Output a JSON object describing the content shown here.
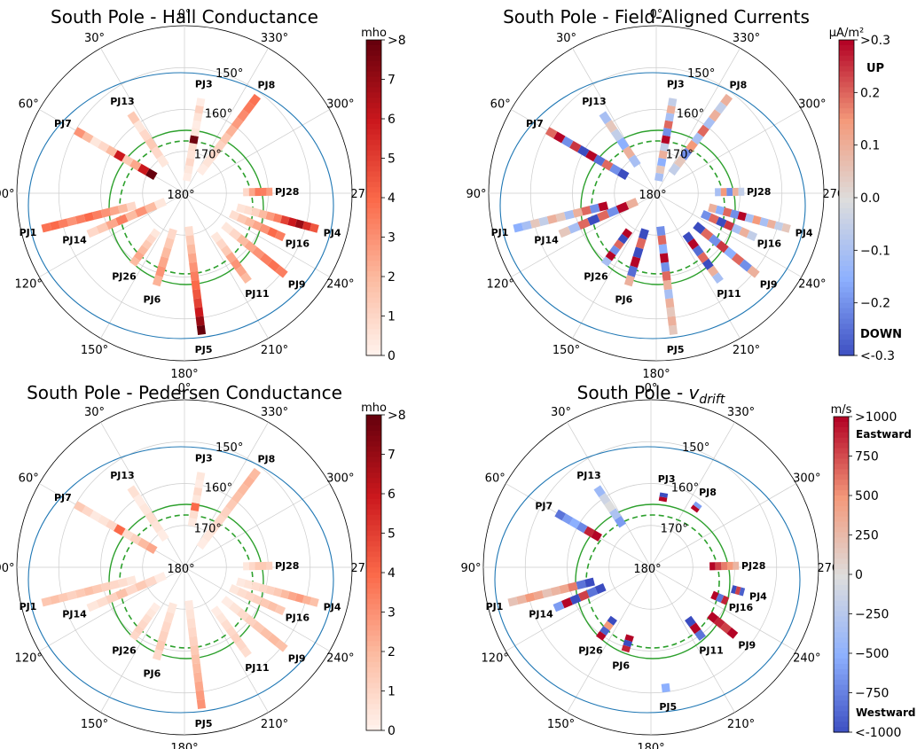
{
  "chart_data": [
    {
      "type": "polar",
      "title": "South Pole  -  Hall Conductance",
      "angle_ticks": [
        "0°",
        "30°",
        "60°",
        "90°",
        "120°",
        "150°",
        "180°",
        "210°",
        "240°",
        "270°",
        "300°",
        "330°"
      ],
      "radial_ticks": [
        "150°",
        "160°",
        "170°",
        "180°"
      ],
      "colorbar": {
        "label": "mho",
        "cmap": "reds",
        "ticks": [
          "0",
          "1",
          "2",
          "3",
          "4",
          "5",
          "6",
          "7",
          ">8"
        ],
        "range": [
          0,
          8
        ],
        "annotations": []
      },
      "tracks": [
        {
          "name": "PJ3",
          "angle": 350,
          "r_start": 3,
          "r_end": 23,
          "values": [
            0.3,
            0.5,
            1.0,
            0.6,
            0.8,
            7.8,
            0.5,
            0.3,
            0.6,
            1.2,
            0.3
          ]
        },
        {
          "name": "PJ8",
          "angle": 323,
          "r_start": 6,
          "r_end": 29,
          "values": [
            0.3,
            0.6,
            1.0,
            1.2,
            1.6,
            2.2,
            2.8,
            3.2,
            3.6,
            3.8
          ]
        },
        {
          "name": "PJ28",
          "angle": 271,
          "r_start": 14,
          "r_end": 21,
          "values": [
            1.0,
            2.5,
            3.6,
            3.5,
            2.8
          ]
        },
        {
          "name": "PJ4",
          "angle": 255,
          "r_start": 13,
          "r_end": 33,
          "values": [
            0.6,
            0.8,
            1.2,
            2.0,
            2.8,
            3.5,
            5.0,
            6.0,
            7.0,
            5.5,
            4.5
          ]
        },
        {
          "name": "PJ16",
          "angle": 246,
          "r_start": 12,
          "r_end": 26,
          "values": [
            0.8,
            1.5,
            2.0,
            2.5,
            3.0,
            4.0,
            3.5
          ]
        },
        {
          "name": "PJ9",
          "angle": 231,
          "r_start": 12,
          "r_end": 31,
          "values": [
            0.5,
            1.0,
            2.0,
            2.5,
            3.0,
            3.5,
            3.8,
            3.5
          ]
        },
        {
          "name": "PJ11",
          "angle": 216,
          "r_start": 12,
          "r_end": 26,
          "values": [
            0.5,
            1.0,
            1.5,
            2.5,
            3.0,
            2.5,
            2.0
          ]
        },
        {
          "name": "PJ5",
          "angle": 187,
          "r_start": 8,
          "r_end": 34,
          "values": [
            0.8,
            1.5,
            2.0,
            2.5,
            3.0,
            3.5,
            4.0,
            4.5,
            5.0,
            6.0,
            7.0,
            8.0
          ]
        },
        {
          "name": "PJ6",
          "angle": 163,
          "r_start": 9,
          "r_end": 23,
          "values": [
            1.0,
            1.5,
            2.0,
            2.5,
            3.0,
            2.2
          ]
        },
        {
          "name": "PJ26",
          "angle": 144,
          "r_start": 11,
          "r_end": 21,
          "values": [
            0.5,
            1.0,
            1.5,
            2.0,
            2.5,
            2.0
          ]
        },
        {
          "name": "PJ14",
          "angle": 113,
          "r_start": 5,
          "r_end": 25,
          "values": [
            0.5,
            2.0,
            3.0,
            2.0,
            3.5,
            2.5,
            1.5,
            1.0
          ]
        },
        {
          "name": "PJ1",
          "angle": 104,
          "r_start": 12,
          "r_end": 35,
          "values": [
            1.0,
            2.0,
            2.5,
            3.0,
            3.5,
            4.0,
            3.5,
            3.0,
            3.5,
            4.0,
            3.8
          ]
        },
        {
          "name": "PJ7",
          "angle": 60,
          "r_start": 8,
          "r_end": 30,
          "values": [
            8.0,
            6.0,
            2.5,
            1.5,
            6.0,
            2.0,
            1.0,
            0.5,
            2.0,
            3.0
          ]
        },
        {
          "name": "PJ13",
          "angle": 34,
          "r_start": 8,
          "r_end": 23,
          "values": [
            0.5,
            1.0,
            1.5,
            1.0,
            0.5,
            1.5
          ]
        }
      ]
    },
    {
      "type": "polar",
      "title": "South Pole  -  Field-Aligned Currents",
      "angle_ticks": [
        "0°",
        "30°",
        "60°",
        "90°",
        "120°",
        "150°",
        "180°",
        "210°",
        "240°",
        "270°",
        "300°",
        "330°"
      ],
      "radial_ticks": [
        "150°",
        "160°",
        "170°",
        "180°"
      ],
      "colorbar": {
        "label": "μA/m²",
        "cmap": "coolwarm",
        "ticks": [
          "<-0.3",
          "−0.2",
          "−0.1",
          "0.0",
          "0.1",
          "0.2",
          ">0.3"
        ],
        "range": [
          -0.3,
          0.3
        ],
        "annotations": [
          "UP",
          "DOWN"
        ]
      },
      "tracks": [
        {
          "name": "PJ3",
          "angle": 350,
          "r_start": 3,
          "r_end": 23,
          "values": [
            -0.1,
            0.05,
            -0.15,
            0.1,
            -0.05,
            0.3,
            -0.2,
            0.2,
            -0.1,
            0.1,
            -0.05
          ]
        },
        {
          "name": "PJ8",
          "angle": 323,
          "r_start": 6,
          "r_end": 29,
          "values": [
            -0.05,
            0.05,
            -0.2,
            0.15,
            -0.1,
            0.2,
            -0.1,
            0.1,
            -0.05,
            0.1
          ]
        },
        {
          "name": "PJ28",
          "angle": 271,
          "r_start": 14,
          "r_end": 21,
          "values": [
            -0.1,
            0.15,
            -0.2,
            0.1,
            -0.05
          ]
        },
        {
          "name": "PJ4",
          "angle": 255,
          "r_start": 13,
          "r_end": 33,
          "values": [
            0.1,
            -0.15,
            0.2,
            -0.2,
            0.3,
            -0.1,
            0.15,
            -0.1,
            0.1,
            -0.05,
            0.05
          ]
        },
        {
          "name": "PJ16",
          "angle": 246,
          "r_start": 12,
          "r_end": 26,
          "values": [
            -0.2,
            0.2,
            -0.3,
            0.25,
            -0.1,
            0.1,
            -0.05
          ]
        },
        {
          "name": "PJ9",
          "angle": 231,
          "r_start": 12,
          "r_end": 31,
          "values": [
            -0.3,
            0.2,
            -0.2,
            0.25,
            -0.15,
            0.2,
            -0.2,
            0.1
          ]
        },
        {
          "name": "PJ11",
          "angle": 216,
          "r_start": 12,
          "r_end": 26,
          "values": [
            -0.3,
            0.3,
            -0.25,
            0.2,
            -0.3,
            0.1,
            -0.1
          ]
        },
        {
          "name": "PJ5",
          "angle": 187,
          "r_start": 8,
          "r_end": 34,
          "values": [
            -0.2,
            0.2,
            -0.15,
            0.3,
            -0.2,
            0.2,
            0.1,
            -0.1,
            0.1,
            0.05,
            0.1,
            0.05
          ]
        },
        {
          "name": "PJ6",
          "angle": 163,
          "r_start": 9,
          "r_end": 23,
          "values": [
            -0.3,
            0.2,
            -0.3,
            0.3,
            -0.25,
            0.1
          ]
        },
        {
          "name": "PJ26",
          "angle": 144,
          "r_start": 11,
          "r_end": 21,
          "values": [
            0.3,
            -0.3,
            0.2,
            -0.2,
            0.3,
            -0.1
          ]
        },
        {
          "name": "PJ14",
          "angle": 113,
          "r_start": 5,
          "r_end": 25,
          "values": [
            0.1,
            0.3,
            -0.2,
            0.2,
            -0.3,
            0.2,
            -0.1,
            0.05
          ]
        },
        {
          "name": "PJ1",
          "angle": 104,
          "r_start": 12,
          "r_end": 35,
          "values": [
            0.3,
            -0.2,
            0.2,
            0.1,
            -0.1,
            0.05,
            0.1,
            -0.05,
            0.05,
            -0.1,
            -0.15
          ]
        },
        {
          "name": "PJ7",
          "angle": 60,
          "r_start": 8,
          "r_end": 30,
          "values": [
            -0.3,
            -0.2,
            0.2,
            -0.25,
            0.3,
            -0.3,
            0.25,
            -0.2,
            0.3,
            0.2
          ]
        },
        {
          "name": "PJ13",
          "angle": 34,
          "r_start": 8,
          "r_end": 23,
          "values": [
            -0.1,
            0.1,
            -0.15,
            -0.05,
            0.05,
            -0.1
          ]
        }
      ]
    },
    {
      "type": "polar",
      "title": "South Pole  -  Pedersen Conductance",
      "angle_ticks": [
        "0°",
        "30°",
        "60°",
        "90°",
        "120°",
        "150°",
        "180°",
        "210°",
        "240°",
        "270°",
        "300°",
        "330°"
      ],
      "radial_ticks": [
        "150°",
        "160°",
        "170°",
        "180°"
      ],
      "colorbar": {
        "label": "mho",
        "cmap": "reds",
        "ticks": [
          "0",
          "1",
          "2",
          "3",
          "4",
          "5",
          "6",
          "7",
          ">8"
        ],
        "range": [
          0,
          8
        ],
        "annotations": []
      },
      "tracks": [
        {
          "name": "PJ3",
          "angle": 350,
          "r_start": 10,
          "r_end": 23,
          "values": [
            0.4,
            0.8,
            4.0,
            0.5,
            0.9,
            0.3,
            0.5
          ]
        },
        {
          "name": "PJ8",
          "angle": 323,
          "r_start": 6,
          "r_end": 29,
          "values": [
            0.3,
            0.5,
            0.8,
            1.0,
            1.2,
            1.5,
            1.8,
            2.0,
            2.2,
            2.0
          ]
        },
        {
          "name": "PJ28",
          "angle": 271,
          "r_start": 14,
          "r_end": 21,
          "values": [
            0.5,
            1.0,
            1.5,
            1.5,
            1.2
          ]
        },
        {
          "name": "PJ4",
          "angle": 255,
          "r_start": 13,
          "r_end": 33,
          "values": [
            0.4,
            0.6,
            0.8,
            1.0,
            1.2,
            1.5,
            2.0,
            2.5,
            2.8,
            2.2,
            1.8
          ]
        },
        {
          "name": "PJ16",
          "angle": 246,
          "r_start": 12,
          "r_end": 26,
          "values": [
            0.5,
            0.8,
            1.0,
            1.2,
            1.5,
            1.8,
            1.5
          ]
        },
        {
          "name": "PJ9",
          "angle": 231,
          "r_start": 12,
          "r_end": 31,
          "values": [
            0.3,
            0.6,
            0.9,
            1.2,
            1.5,
            1.8,
            2.0,
            1.8
          ]
        },
        {
          "name": "PJ11",
          "angle": 216,
          "r_start": 12,
          "r_end": 26,
          "values": [
            0.3,
            0.5,
            0.8,
            1.0,
            1.2,
            1.0,
            0.8
          ]
        },
        {
          "name": "PJ5",
          "angle": 187,
          "r_start": 8,
          "r_end": 34,
          "values": [
            0.4,
            0.6,
            0.8,
            1.0,
            1.2,
            1.5,
            1.8,
            2.0,
            2.2,
            2.5,
            2.8,
            3.0
          ]
        },
        {
          "name": "PJ6",
          "angle": 163,
          "r_start": 9,
          "r_end": 23,
          "values": [
            0.5,
            0.8,
            1.0,
            1.2,
            1.5,
            1.0
          ]
        },
        {
          "name": "PJ26",
          "angle": 144,
          "r_start": 11,
          "r_end": 21,
          "values": [
            0.3,
            0.5,
            0.8,
            1.0,
            1.2,
            1.0
          ]
        },
        {
          "name": "PJ14",
          "angle": 113,
          "r_start": 5,
          "r_end": 25,
          "values": [
            0.3,
            1.0,
            1.5,
            1.0,
            1.8,
            1.2,
            0.8,
            0.5
          ]
        },
        {
          "name": "PJ1",
          "angle": 104,
          "r_start": 12,
          "r_end": 35,
          "values": [
            0.5,
            0.8,
            1.0,
            1.2,
            1.5,
            1.8,
            1.5,
            1.2,
            1.5,
            1.8,
            1.6
          ]
        },
        {
          "name": "PJ7",
          "angle": 60,
          "r_start": 8,
          "r_end": 30,
          "values": [
            2.5,
            2.0,
            1.2,
            0.8,
            4.0,
            1.0,
            0.6,
            0.4,
            1.0,
            1.5
          ]
        },
        {
          "name": "PJ13",
          "angle": 34,
          "r_start": 8,
          "r_end": 23,
          "values": [
            0.3,
            0.6,
            0.8,
            0.5,
            0.3,
            0.7
          ]
        }
      ]
    },
    {
      "type": "polar",
      "title": "South Pole  -  ",
      "title_symbol": "v",
      "title_subscript": "drift",
      "angle_ticks": [
        "0°",
        "30°",
        "60°",
        "90°",
        "120°",
        "150°",
        "180°",
        "210°",
        "240°",
        "270°",
        "300°",
        "330°"
      ],
      "radial_ticks": [
        "150°",
        "160°",
        "170°",
        "180°"
      ],
      "colorbar": {
        "label": "m/s",
        "cmap": "coolwarm",
        "ticks": [
          "<-1000",
          "−750",
          "−500",
          "−250",
          "0",
          "250",
          "500",
          "750",
          ">1000"
        ],
        "range": [
          -1000,
          1000
        ],
        "annotations": [
          "Eastward",
          "Westward"
        ]
      },
      "tracks": [
        {
          "name": "PJ3",
          "angle": 350,
          "r_start": 16,
          "r_end": 18,
          "values": [
            1000,
            -1000
          ]
        },
        {
          "name": "PJ8",
          "angle": 323,
          "r_start": 17,
          "r_end": 19,
          "values": [
            1000,
            -600
          ]
        },
        {
          "name": "PJ28",
          "angle": 271,
          "r_start": 14,
          "r_end": 21,
          "values": [
            1000,
            800,
            600,
            500,
            300
          ]
        },
        {
          "name": "PJ4",
          "angle": 255,
          "r_start": 20,
          "r_end": 23,
          "values": [
            -1000,
            800,
            -900
          ]
        },
        {
          "name": "PJ16",
          "angle": 246,
          "r_start": 16,
          "r_end": 20,
          "values": [
            1000,
            -800,
            900
          ]
        },
        {
          "name": "PJ9",
          "angle": 231,
          "r_start": 18,
          "r_end": 26,
          "values": [
            1000,
            900,
            800,
            1000
          ]
        },
        {
          "name": "PJ11",
          "angle": 216,
          "r_start": 15,
          "r_end": 21,
          "values": [
            -1000,
            1000,
            -800
          ]
        },
        {
          "name": "PJ5",
          "angle": 187,
          "r_start": 28,
          "r_end": 30,
          "values": [
            -500
          ]
        },
        {
          "name": "PJ6",
          "angle": 163,
          "r_start": 17,
          "r_end": 21,
          "values": [
            1000,
            -1000,
            900
          ]
        },
        {
          "name": "PJ26",
          "angle": 144,
          "r_start": 15,
          "r_end": 21,
          "values": [
            -1000,
            500,
            -900,
            1000
          ]
        },
        {
          "name": "PJ14",
          "angle": 113,
          "r_start": 12,
          "r_end": 25,
          "values": [
            -1000,
            -800,
            800,
            -1000,
            1000,
            -600
          ]
        },
        {
          "name": "PJ1",
          "angle": 104,
          "r_start": 14,
          "r_end": 35,
          "values": [
            -1000,
            -800,
            600,
            400,
            300,
            200,
            400,
            500,
            300,
            200
          ]
        },
        {
          "name": "PJ7",
          "angle": 60,
          "r_start": 14,
          "r_end": 26,
          "values": [
            1000,
            900,
            -700,
            -500,
            -600,
            -800
          ]
        },
        {
          "name": "PJ13",
          "angle": 34,
          "r_start": 12,
          "r_end": 23,
          "values": [
            -600,
            -300,
            0,
            -100,
            -400
          ]
        }
      ]
    }
  ]
}
